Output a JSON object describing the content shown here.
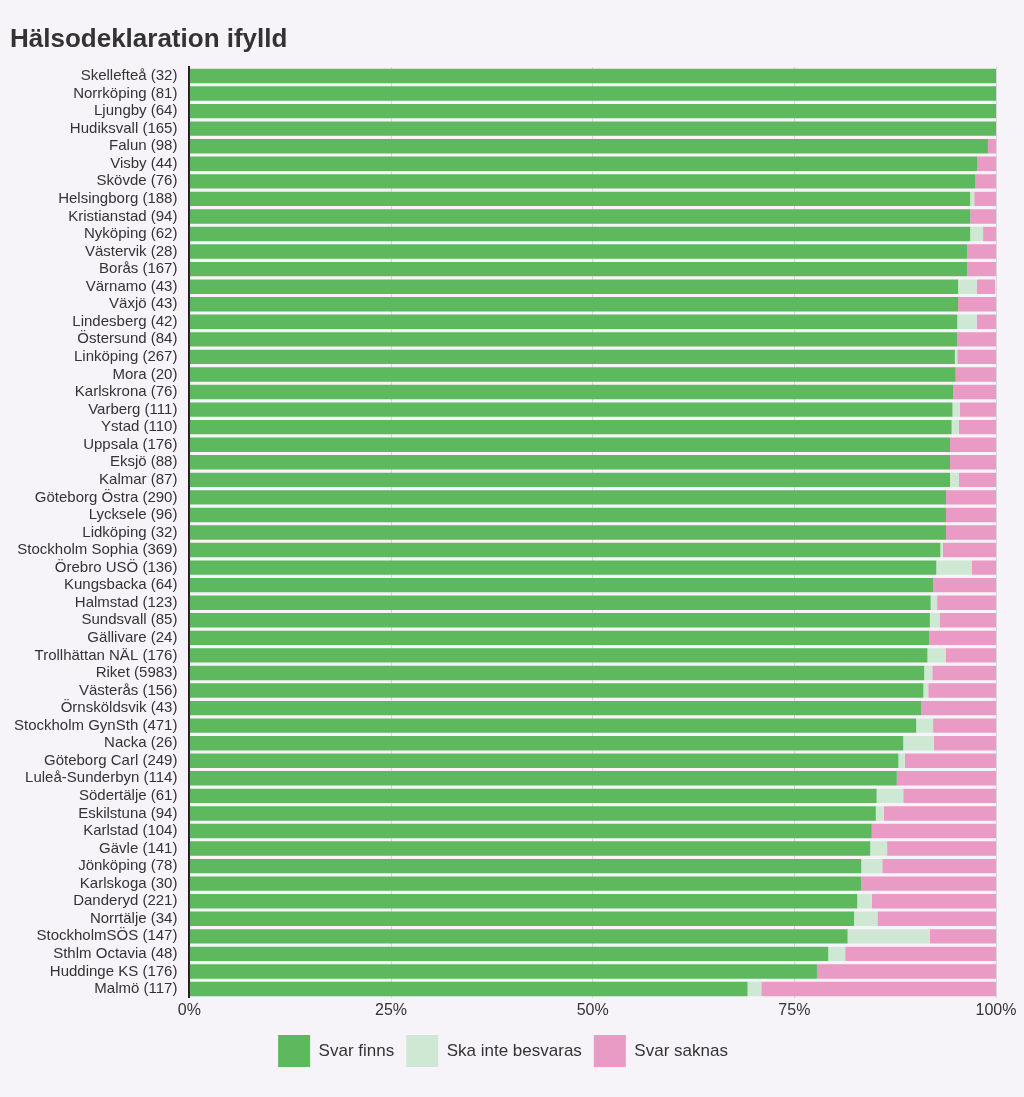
{
  "chart_data": {
    "type": "bar",
    "orientation": "horizontal",
    "stacked": true,
    "title": "Hälsodeklaration ifylld",
    "categories": [
      "Skellefteå (32)",
      "Norrköping (81)",
      "Ljungby (64)",
      "Hudiksvall (165)",
      "Falun (98)",
      "Visby (44)",
      "Skövde (76)",
      "Helsingborg (188)",
      "Kristianstad (94)",
      "Nyköping (62)",
      "Västervik (28)",
      "Borås (167)",
      "Värnamo (43)",
      "Växjö (43)",
      "Lindesberg (42)",
      "Östersund (84)",
      "Linköping (267)",
      "Mora (20)",
      "Karlskrona (76)",
      "Varberg (111)",
      "Ystad (110)",
      "Uppsala (176)",
      "Eksjö (88)",
      "Kalmar (87)",
      "Göteborg Östra (290)",
      "Lycksele (96)",
      "Lidköping (32)",
      "Stockholm Sophia (369)",
      "Örebro USÖ (136)",
      "Kungsbacka (64)",
      "Halmstad (123)",
      "Sundsvall (85)",
      "Gällivare (24)",
      "Trollhättan NÄL (176)",
      "Riket (5983)",
      "Västerås (156)",
      "Örnsköldsvik (43)",
      "Stockholm GynSth (471)",
      "Nacka (26)",
      "Göteborg Carl (249)",
      "Luleå-Sunderbyn (114)",
      "Södertälje (61)",
      "Eskilstuna (94)",
      "Karlstad (104)",
      "Gävle (141)",
      "Jönköping (78)",
      "Karlskoga (30)",
      "Danderyd (221)",
      "Norrtälje (34)",
      "StockholmSÖS (147)",
      "Sthlm Octavia (48)",
      "Huddinge KS (176)",
      "Malmö (117)"
    ],
    "series": [
      {
        "name": "Svar finns",
        "color": "#5db85e",
        "values": [
          100,
          100,
          100,
          100,
          99.0,
          97.7,
          97.4,
          96.8,
          96.8,
          96.8,
          96.4,
          96.4,
          95.3,
          95.3,
          95.2,
          95.2,
          94.9,
          95.0,
          94.7,
          94.6,
          94.5,
          94.3,
          94.3,
          94.3,
          93.8,
          93.8,
          93.8,
          93.1,
          92.6,
          92.2,
          91.9,
          91.8,
          91.7,
          91.5,
          91.1,
          91.0,
          90.7,
          90.1,
          88.5,
          87.9,
          87.7,
          85.2,
          85.1,
          84.6,
          84.4,
          83.3,
          83.3,
          82.8,
          82.4,
          81.6,
          79.2,
          77.8,
          69.2
        ]
      },
      {
        "name": "Ska inte besvaras",
        "color": "#cfe8d4",
        "values": [
          0,
          0,
          0,
          0,
          0,
          0,
          0,
          0.5,
          0,
          1.6,
          0,
          0,
          2.3,
          0,
          2.4,
          0,
          0.3,
          0,
          0,
          0.9,
          0.9,
          0,
          0,
          1.1,
          0,
          0,
          0,
          0.3,
          4.4,
          0,
          0.8,
          1.2,
          0,
          2.3,
          1.0,
          0.6,
          0,
          2.1,
          3.8,
          0.8,
          0,
          3.3,
          1.0,
          0,
          2.1,
          2.6,
          0,
          1.8,
          2.9,
          10.2,
          2.1,
          0,
          1.7
        ]
      },
      {
        "name": "Svar saknas",
        "color": "#e99ac5",
        "values": [
          0,
          0,
          0,
          0,
          1.0,
          2.3,
          2.6,
          2.7,
          3.2,
          1.6,
          3.6,
          3.6,
          2.3,
          4.7,
          2.4,
          4.8,
          4.8,
          5.0,
          5.3,
          4.5,
          4.6,
          5.7,
          5.7,
          4.6,
          6.2,
          6.2,
          6.2,
          6.6,
          3.0,
          7.8,
          7.3,
          7.0,
          8.3,
          6.2,
          7.9,
          8.4,
          9.3,
          7.8,
          7.7,
          11.3,
          12.3,
          11.5,
          13.9,
          15.4,
          13.5,
          14.1,
          16.7,
          15.4,
          14.7,
          8.2,
          18.7,
          22.2,
          29.1
        ]
      }
    ],
    "xlim": [
      0,
      100
    ],
    "xticks": [
      {
        "value": 0,
        "label": "0%"
      },
      {
        "value": 25,
        "label": "25%"
      },
      {
        "value": 50,
        "label": "50%"
      },
      {
        "value": 75,
        "label": "75%"
      },
      {
        "value": 100,
        "label": "100%"
      }
    ],
    "grid": true,
    "legend": "bottom"
  }
}
